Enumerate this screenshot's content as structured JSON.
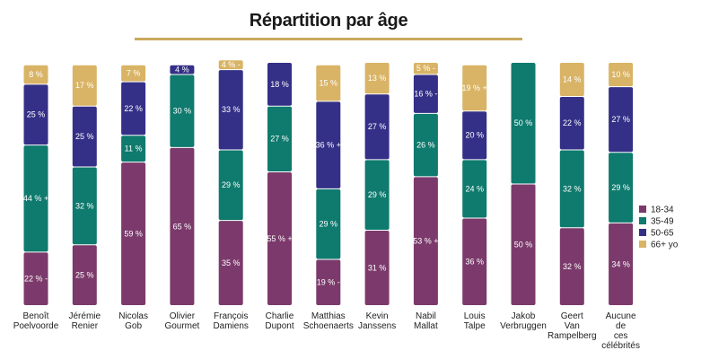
{
  "chart_data": {
    "type": "bar",
    "stacked": true,
    "normalized_percent": true,
    "title": "Répartition par âge",
    "categories": [
      [
        "Benoît",
        "Poelvoorde"
      ],
      [
        "Jérémie",
        "Renier"
      ],
      [
        "Nicolas",
        "Gob"
      ],
      [
        "Olivier",
        "Gourmet"
      ],
      [
        "François",
        "Damiens"
      ],
      [
        "Charlie",
        "Dupont"
      ],
      [
        "Matthias",
        "Schoenaerts"
      ],
      [
        "Kevin",
        "Janssens"
      ],
      [
        "Nabil",
        "Mallat"
      ],
      [
        "Louis",
        "Talpe"
      ],
      [
        "Jakob",
        "Verbruggen"
      ],
      [
        "Geert",
        "Van",
        "Rampelberg"
      ],
      [
        "Aucune",
        "de",
        "ces",
        "célébrités"
      ]
    ],
    "series": [
      {
        "name": "18-34",
        "color": "#7b3a6b",
        "values": [
          22,
          25,
          59,
          65,
          35,
          55,
          19,
          31,
          53,
          36,
          50,
          32,
          34
        ],
        "labels": [
          "22 % -",
          "25 %",
          "59 %",
          "65 %",
          "35 %",
          "55 % +",
          "19 % -",
          "31 %",
          "53 % +",
          "36 %",
          "50 %",
          "32 %",
          "34 %"
        ]
      },
      {
        "name": "35-49",
        "color": "#0f7a6e",
        "values": [
          44,
          32,
          11,
          30,
          29,
          27,
          29,
          29,
          26,
          24,
          50,
          32,
          29
        ],
        "labels": [
          "44 % +",
          "32 %",
          "11 %",
          "30 %",
          "29 %",
          "27 %",
          "29 %",
          "29 %",
          "26 %",
          "24 %",
          "50 %",
          "32 %",
          "29 %"
        ]
      },
      {
        "name": "50-65",
        "color": "#343087",
        "values": [
          25,
          25,
          22,
          4,
          33,
          18,
          36,
          27,
          16,
          20,
          0,
          22,
          27
        ],
        "labels": [
          "25 %",
          "25 %",
          "22 %",
          "4 %",
          "33 %",
          "18 %",
          "36 % +",
          "27 %",
          "16 % -",
          "20 %",
          "",
          "22 %",
          "27 %"
        ]
      },
      {
        "name": "66+ yo",
        "color": "#d9b466",
        "values": [
          8,
          17,
          7,
          0,
          4,
          0,
          15,
          13,
          5,
          19,
          0,
          14,
          10
        ],
        "labels": [
          "8 %",
          "17 %",
          "7 %",
          "",
          "4 % -",
          "",
          "15 %",
          "13 %",
          "5 % -",
          "19 % +",
          "",
          "14 %",
          "10 %"
        ]
      }
    ],
    "ylim": [
      0,
      100
    ],
    "grid": false,
    "legend_position": "right"
  }
}
